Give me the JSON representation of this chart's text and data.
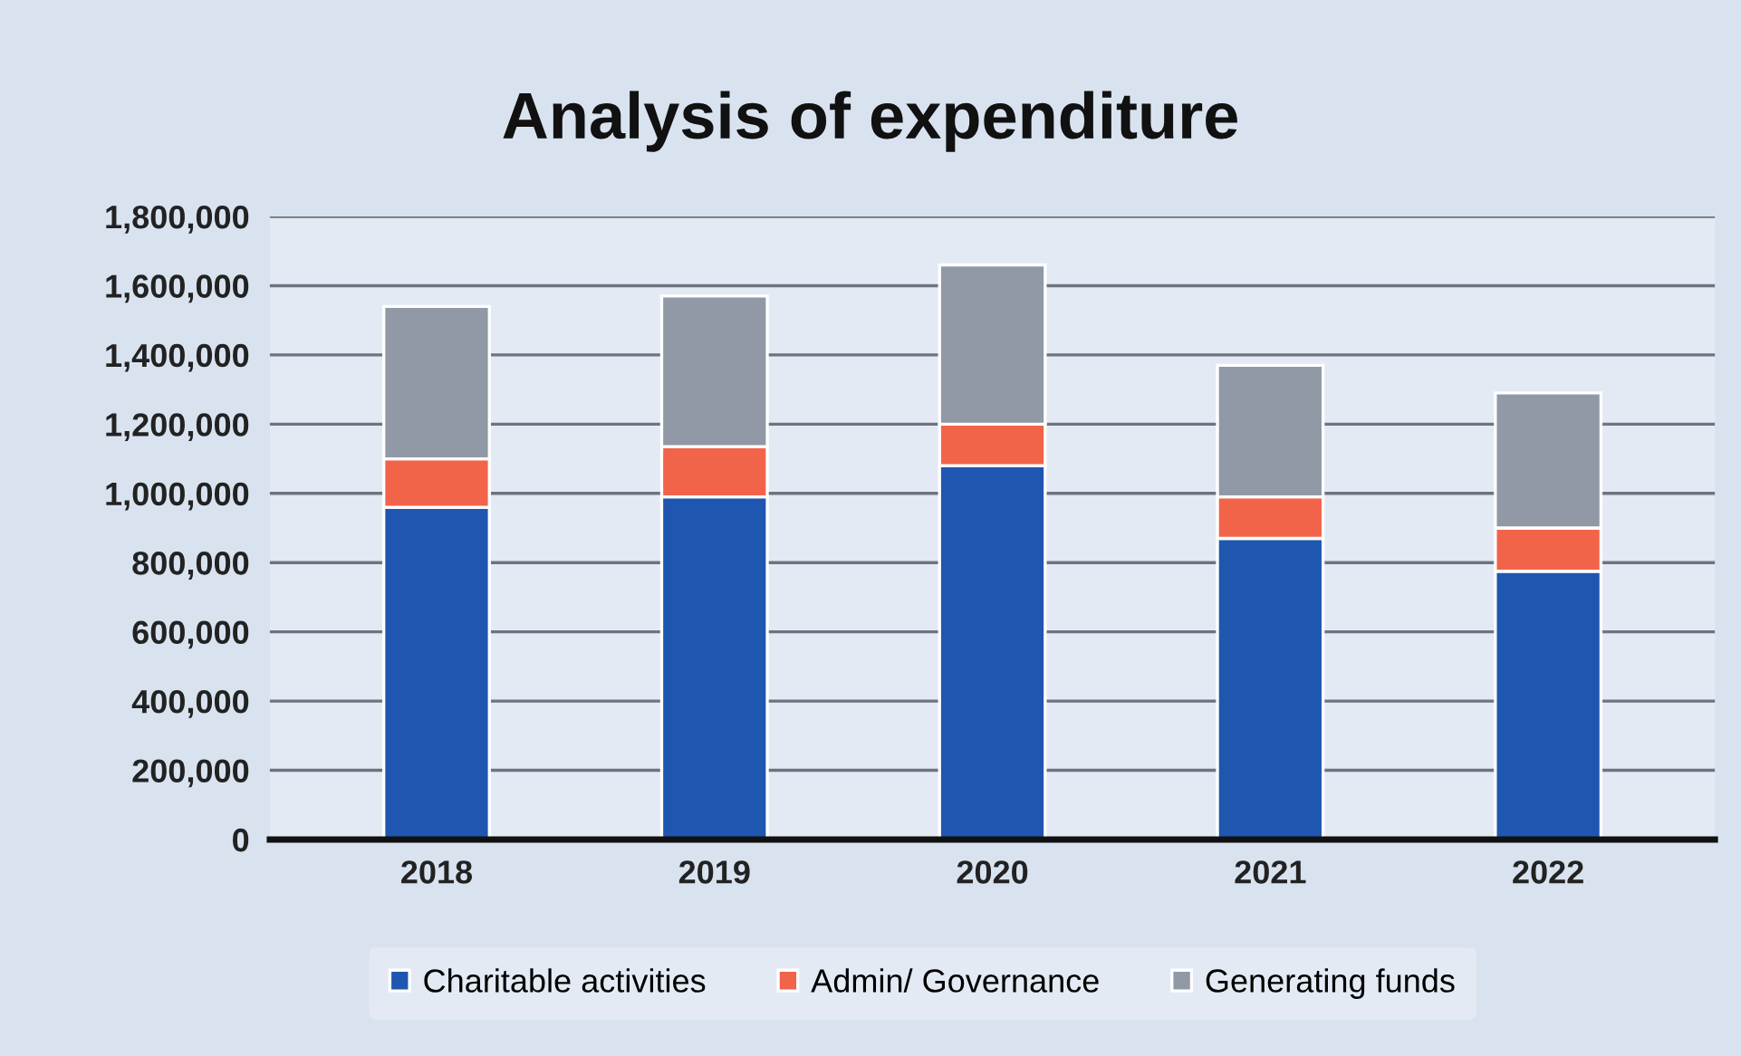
{
  "chart_data": {
    "type": "bar",
    "stacked": true,
    "title": "Analysis of expenditure",
    "categories": [
      "2018",
      "2019",
      "2020",
      "2021",
      "2022"
    ],
    "series": [
      {
        "name": "Charitable activities",
        "color": "#1f56b0",
        "values": [
          960000,
          990000,
          1080000,
          870000,
          775000
        ]
      },
      {
        "name": "Admin/ Governance",
        "color": "#f2644a",
        "values": [
          140000,
          145000,
          120000,
          120000,
          125000
        ]
      },
      {
        "name": "Generating funds",
        "color": "#9199a6",
        "values": [
          440000,
          435000,
          460000,
          380000,
          390000
        ]
      }
    ],
    "ylim": [
      0,
      1800000
    ],
    "yticks": [
      {
        "value": 0,
        "label": "0"
      },
      {
        "value": 200000,
        "label": "200,000"
      },
      {
        "value": 400000,
        "label": "400,000"
      },
      {
        "value": 600000,
        "label": "600,000"
      },
      {
        "value": 800000,
        "label": "800,000"
      },
      {
        "value": 1000000,
        "label": "1,000,000"
      },
      {
        "value": 1200000,
        "label": "1,200,000"
      },
      {
        "value": 1400000,
        "label": "1,400,000"
      },
      {
        "value": 1600000,
        "label": "1,600,000"
      },
      {
        "value": 1800000,
        "label": "1,800,000"
      }
    ],
    "grid": "y",
    "legend": "bottom"
  }
}
